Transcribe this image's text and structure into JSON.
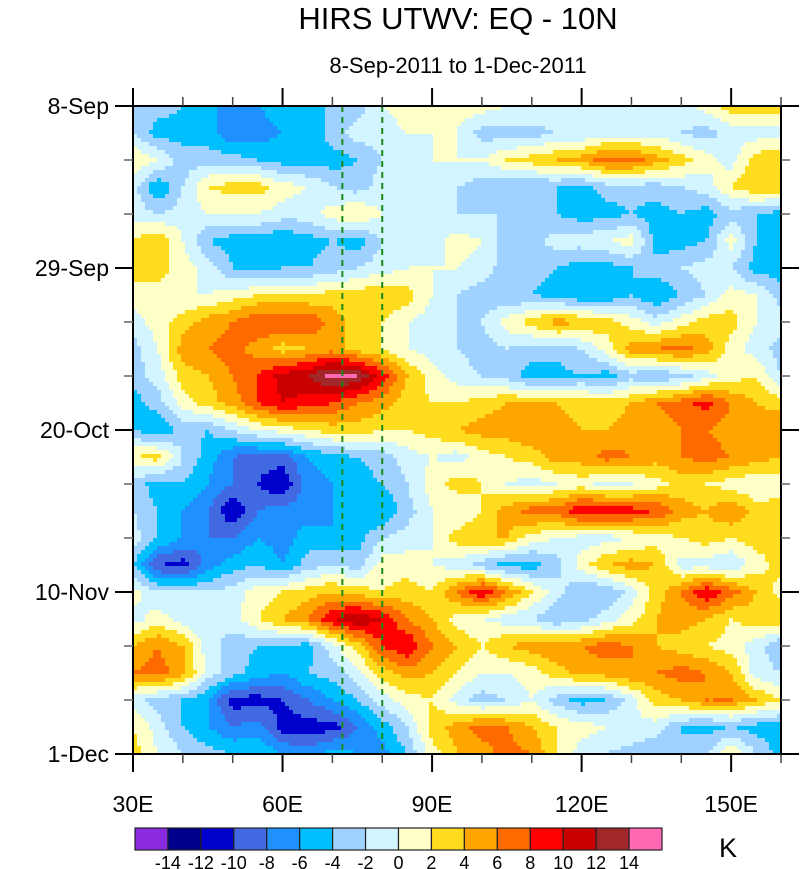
{
  "chart_data": {
    "type": "heatmap",
    "title": "HIRS UTWV: EQ - 10N",
    "subtitle": "8-Sep-2011 to 1-Dec-2011",
    "xlabel": "",
    "ylabel": "",
    "units": "K",
    "x_range": [
      30,
      160
    ],
    "x_unit": "degrees east",
    "x_ticks": [
      {
        "value": 30,
        "label": "30E"
      },
      {
        "value": 60,
        "label": "60E"
      },
      {
        "value": 90,
        "label": "90E"
      },
      {
        "value": 120,
        "label": "120E"
      },
      {
        "value": 150,
        "label": "150E"
      }
    ],
    "x_minor_step": 10,
    "y_range_days": [
      0,
      84
    ],
    "y_start_date": "8-Sep-2011",
    "y_direction": "top-to-bottom",
    "y_ticks": [
      {
        "day": 0,
        "label": "8-Sep"
      },
      {
        "day": 21,
        "label": "29-Sep"
      },
      {
        "day": 42,
        "label": "20-Oct"
      },
      {
        "day": 63,
        "label": "10-Nov"
      },
      {
        "day": 84,
        "label": "1-Dec"
      }
    ],
    "y_minor_step_days": 7,
    "reference_lines": [
      {
        "longitude": 72,
        "style": "dashed",
        "color": "#1a8a1a"
      },
      {
        "longitude": 80,
        "style": "dashed",
        "color": "#1a8a1a"
      }
    ],
    "contour_levels": [
      -14,
      -12,
      -10,
      -8,
      -6,
      -4,
      -2,
      0,
      2,
      4,
      6,
      8,
      10,
      12,
      14
    ],
    "colorbar": {
      "labels": [
        "-14",
        "-12",
        "-10",
        "-8",
        "-6",
        "-4",
        "-2",
        "0",
        "2",
        "4",
        "6",
        "8",
        "10",
        "12",
        "14"
      ],
      "colors": [
        "#8a2be2",
        "#00008b",
        "#0000cd",
        "#4169e1",
        "#1e90ff",
        "#00bfff",
        "#a0d2ff",
        "#d2f5ff",
        "#ffffc8",
        "#ffdc1e",
        "#ffa500",
        "#ff6a00",
        "#ff0000",
        "#c80000",
        "#a02828",
        "#ff69b4"
      ]
    },
    "grid": {
      "longitudes": [
        30,
        35,
        40,
        45,
        50,
        55,
        60,
        65,
        70,
        75,
        80,
        85,
        90,
        95,
        100,
        105,
        110,
        115,
        120,
        125,
        130,
        135,
        140,
        145,
        150,
        155,
        160
      ],
      "days": [
        0,
        3.5,
        7,
        10.5,
        14,
        17.5,
        21,
        24.5,
        28,
        31.5,
        35,
        38.5,
        42,
        45.5,
        49,
        52.5,
        56,
        59.5,
        63,
        66.5,
        70,
        73.5,
        77,
        80.5,
        84
      ],
      "values": [
        [
          -3,
          -3,
          -4,
          -6,
          -6,
          -6,
          -5,
          -4,
          -4,
          -3,
          0,
          1,
          1,
          1,
          1,
          0,
          0,
          0,
          -2,
          -1,
          -1,
          -1,
          -1,
          1,
          3,
          3,
          3
        ],
        [
          -2,
          -5,
          -5,
          -5,
          -8,
          -7,
          -6,
          -6,
          -3,
          -1,
          -1,
          0,
          0,
          0,
          -3,
          -3,
          -3,
          -2,
          -2,
          -1,
          -1,
          -1,
          -2,
          -3,
          -1,
          -1,
          -1
        ],
        [
          2,
          0,
          -3,
          -3,
          -3,
          -4,
          -5,
          -5,
          -5,
          -4,
          -2,
          -1,
          0,
          0,
          0,
          2,
          3,
          4,
          5,
          7,
          7,
          5,
          3,
          1,
          -1,
          3,
          4
        ],
        [
          -1,
          -6,
          -2,
          2,
          3,
          3,
          1,
          0,
          -2,
          -3,
          -1,
          0,
          -1,
          -2,
          -3,
          -4,
          -4,
          -4,
          -5,
          -3,
          -3,
          -3,
          -2,
          -1,
          2,
          4,
          4
        ],
        [
          -1,
          -2,
          -1,
          0,
          0,
          0,
          -1,
          -1,
          1,
          2,
          0,
          -1,
          -1,
          -2,
          -2,
          -2,
          -3,
          -4,
          -5,
          -5,
          -4,
          -5,
          -4,
          -5,
          -3,
          -4,
          -5
        ],
        [
          2,
          4,
          0,
          -4,
          -5,
          -5,
          -6,
          -5,
          -4,
          -5,
          -2,
          -1,
          -1,
          1,
          0,
          -3,
          -3,
          -1,
          -1,
          0,
          1,
          -5,
          -5,
          -4,
          1,
          -4,
          -5
        ],
        [
          3,
          3,
          1,
          -1,
          -4,
          -5,
          -4,
          -4,
          -3,
          -2,
          -1,
          0,
          0,
          0,
          -1,
          -3,
          -3,
          -4,
          -5,
          -5,
          -4,
          -3,
          -2,
          -1,
          -2,
          -5,
          -5
        ],
        [
          1,
          1,
          0,
          0,
          1,
          2,
          2,
          2,
          3,
          3,
          4,
          3,
          0,
          -2,
          -3,
          -4,
          -4,
          -5,
          -6,
          -6,
          -4,
          -6,
          -4,
          -2,
          1,
          0,
          -3
        ],
        [
          -1,
          1,
          3,
          5,
          6,
          8,
          8,
          8,
          5,
          3,
          2,
          0,
          -1,
          -2,
          -2,
          1,
          3,
          5,
          4,
          3,
          1,
          -1,
          1,
          3,
          3,
          0,
          -1
        ],
        [
          -3,
          0,
          5,
          6,
          7,
          5,
          3,
          4,
          5,
          3,
          2,
          0,
          -1,
          -2,
          -3,
          -2,
          -3,
          -3,
          -2,
          1,
          5,
          6,
          7,
          5,
          1,
          -1,
          -3
        ],
        [
          -3,
          -1,
          3,
          4,
          6,
          8,
          11,
          12,
          15,
          14,
          9,
          4,
          1,
          -1,
          -2,
          -3,
          -5,
          -5,
          -4,
          -5,
          -3,
          -4,
          -3,
          -1,
          1,
          2,
          -2
        ],
        [
          -5,
          -3,
          1,
          3,
          5,
          8,
          10,
          9,
          8,
          6,
          5,
          3,
          2,
          2,
          3,
          4,
          4,
          4,
          3,
          3,
          4,
          6,
          7,
          9,
          6,
          4,
          3
        ],
        [
          -4,
          -6,
          -3,
          -4,
          -2,
          0,
          1,
          2,
          3,
          3,
          2,
          2,
          3,
          4,
          5,
          5,
          6,
          5,
          4,
          4,
          5,
          5,
          6,
          6,
          5,
          5,
          6
        ],
        [
          2,
          3,
          -2,
          -5,
          -8,
          -9,
          -9,
          -6,
          -5,
          -4,
          -3,
          -1,
          0,
          -1,
          1,
          2,
          3,
          5,
          5,
          7,
          6,
          5,
          6,
          7,
          6,
          5,
          4
        ],
        [
          -3,
          -5,
          -4,
          -6,
          -8,
          -10,
          -12,
          -7,
          -6,
          -5,
          -4,
          -2,
          1,
          3,
          2,
          0,
          -1,
          0,
          1,
          -1,
          0,
          1,
          3,
          2,
          1,
          0,
          1
        ],
        [
          -2,
          -4,
          -6,
          -8,
          -12,
          -8,
          -7,
          -7,
          -6,
          -6,
          -6,
          -3,
          0,
          0,
          2,
          5,
          7,
          7,
          10,
          10,
          9,
          8,
          5,
          4,
          6,
          3,
          3
        ],
        [
          -1,
          -4,
          -6,
          -8,
          -8,
          -6,
          -7,
          -5,
          -6,
          -5,
          -2,
          -1,
          0,
          3,
          4,
          4,
          1,
          0,
          -1,
          -1,
          0,
          1,
          2,
          3,
          2,
          3,
          2
        ],
        [
          -4,
          -10,
          -11,
          -7,
          -5,
          -4,
          -6,
          -3,
          -2,
          -3,
          1,
          1,
          0,
          -1,
          -3,
          -5,
          -5,
          -3,
          1,
          4,
          5,
          4,
          -1,
          -1,
          -2,
          1,
          3
        ],
        [
          1,
          -2,
          -2,
          -2,
          -1,
          1,
          2,
          3,
          4,
          3,
          2,
          3,
          2,
          6,
          10,
          6,
          2,
          -1,
          -4,
          -4,
          -1,
          3,
          6,
          10,
          7,
          4,
          1
        ],
        [
          -1,
          1,
          -1,
          -2,
          -1,
          2,
          4,
          6,
          10,
          12,
          10,
          6,
          4,
          1,
          0,
          -1,
          -2,
          -4,
          -3,
          -1,
          1,
          4,
          5,
          4,
          2,
          3,
          4
        ],
        [
          4,
          6,
          4,
          -1,
          -3,
          -4,
          -4,
          -5,
          -1,
          3,
          8,
          10,
          6,
          4,
          2,
          4,
          5,
          6,
          6,
          7,
          6,
          4,
          3,
          2,
          1,
          -1,
          -4
        ],
        [
          6,
          7,
          5,
          -1,
          -3,
          -5,
          -6,
          -4,
          -3,
          -1,
          3,
          5,
          4,
          2,
          0,
          0,
          1,
          3,
          5,
          5,
          6,
          6,
          7,
          6,
          4,
          -1,
          -2
        ],
        [
          -1,
          -3,
          -4,
          -6,
          -11,
          -11,
          -10,
          -8,
          -6,
          -4,
          -1,
          1,
          2,
          -1,
          -3,
          -2,
          0,
          -3,
          -5,
          -4,
          -1,
          3,
          4,
          6,
          6,
          4,
          2
        ],
        [
          2,
          -1,
          -4,
          -6,
          -8,
          -7,
          -11,
          -11,
          -11,
          -8,
          -5,
          -2,
          3,
          5,
          7,
          6,
          4,
          2,
          1,
          0,
          0,
          -1,
          -4,
          -5,
          -4,
          -5,
          -5
        ],
        [
          3,
          0,
          -2,
          -3,
          -4,
          -4,
          -6,
          -7,
          -5,
          -6,
          -7,
          -4,
          1,
          4,
          5,
          7,
          6,
          2,
          -1,
          -2,
          -3,
          -4,
          -4,
          -2,
          2,
          -2,
          -5
        ]
      ]
    }
  }
}
